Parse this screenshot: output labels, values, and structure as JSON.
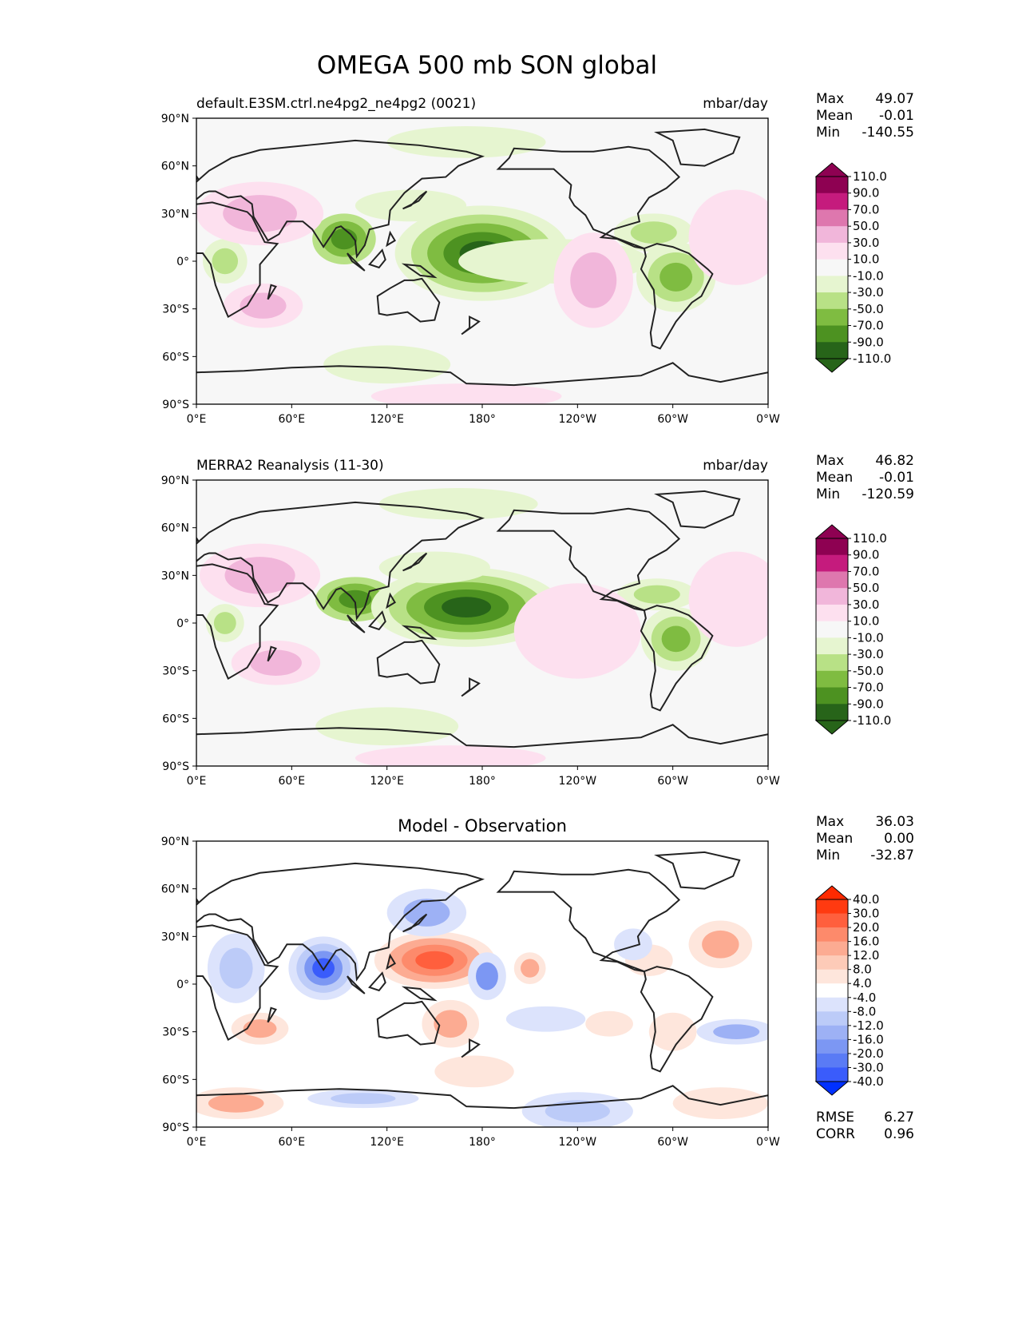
{
  "title": "OMEGA 500 mb SON global",
  "axes": {
    "lat_ticks": [
      "90°N",
      "60°N",
      "30°N",
      "0°",
      "30°S",
      "60°S",
      "90°S"
    ],
    "lon_ticks": [
      "0°E",
      "60°E",
      "120°E",
      "180°",
      "120°W",
      "60°W",
      "0°W"
    ]
  },
  "stat_labels": {
    "max": "Max",
    "mean": "Mean",
    "min": "Min",
    "rmse": "RMSE",
    "corr": "CORR"
  },
  "panels": [
    {
      "id": "model",
      "title_left": "default.E3SM.ctrl.ne4pg2_ne4pg2 (0021)",
      "title_center": "",
      "title_right": "mbar/day",
      "stats": {
        "max": "49.07",
        "mean": "-0.01",
        "min": "-140.55"
      },
      "colorbar": "omega"
    },
    {
      "id": "obs",
      "title_left": "MERRA2 Reanalysis (11-30)",
      "title_center": "",
      "title_right": "mbar/day",
      "stats": {
        "max": "46.82",
        "mean": "-0.01",
        "min": "-120.59"
      },
      "colorbar": "omega"
    },
    {
      "id": "diff",
      "title_left": "",
      "title_center": "Model - Observation",
      "title_right": "",
      "stats": {
        "max": "36.03",
        "mean": "0.00",
        "min": "-32.87",
        "rmse": "6.27",
        "corr": "0.96"
      },
      "colorbar": "diff"
    }
  ],
  "colorbars": {
    "omega": {
      "labels": [
        "110.0",
        "90.0",
        "70.0",
        "50.0",
        "30.0",
        "10.0",
        "-10.0",
        "-30.0",
        "-50.0",
        "-70.0",
        "-90.0",
        "-110.0"
      ],
      "colors": [
        "#8e0152",
        "#c51b7d",
        "#de77ae",
        "#f1b6da",
        "#fde0ef",
        "#f7f7f7",
        "#e6f5d0",
        "#b8e186",
        "#7fbc41",
        "#4d9221",
        "#276419"
      ],
      "over_color": "#8e0152",
      "under_color": "#276419"
    },
    "diff": {
      "labels": [
        "40.0",
        "30.0",
        "20.0",
        "16.0",
        "12.0",
        "8.0",
        "4.0",
        "-4.0",
        "-8.0",
        "-12.0",
        "-16.0",
        "-20.0",
        "-30.0",
        "-40.0"
      ],
      "colors": [
        "#ff3a10",
        "#ff5f3d",
        "#fd8a6b",
        "#fcab92",
        "#fdcbb8",
        "#fee6dc",
        "#ffffff",
        "#dce3fc",
        "#bccbf8",
        "#9db1f5",
        "#7c97f3",
        "#5a7bf5",
        "#3a5cfb"
      ],
      "over_color": "#ff2a00",
      "under_color": "#0030ff"
    }
  },
  "palette": {
    "ocean_background": "#f7f7f7",
    "diff_background": "#ffffff",
    "pink_light": "#fde0ef",
    "pink_mid": "#f1b6da",
    "green_light": "#e6f5d0",
    "green_mid": "#b8e186",
    "green_strong": "#7fbc41",
    "green_dark": "#4d9221",
    "green_darkest": "#276419",
    "blue_light": "#dce3fc",
    "blue_mid": "#9db1f5",
    "blue_strong": "#3a5cfb",
    "red_light": "#fee6dc",
    "red_mid": "#fcab92",
    "red_strong": "#ff5f3d"
  },
  "features": {
    "model": [
      {
        "lon": 93,
        "lat": 14,
        "rx": 20,
        "ry": 16,
        "levels": [
          "#b8e186",
          "#7fbc41",
          "#4d9221"
        ]
      },
      {
        "lon": 180,
        "lat": 5,
        "rx": 55,
        "ry": 30,
        "levels": [
          "#e6f5d0",
          "#b8e186",
          "#7fbc41",
          "#4d9221",
          "#276419"
        ]
      },
      {
        "lon": 225,
        "lat": 0,
        "rx": 60,
        "ry": 14,
        "levels": [
          "#e6f5d0"
        ]
      },
      {
        "lon": 135,
        "lat": 35,
        "rx": 35,
        "ry": 10,
        "levels": [
          "#e6f5d0"
        ]
      },
      {
        "lon": 170,
        "lat": 75,
        "rx": 50,
        "ry": 10,
        "levels": [
          "#e6f5d0"
        ]
      },
      {
        "lon": 288,
        "lat": 18,
        "rx": 25,
        "ry": 12,
        "levels": [
          "#e6f5d0",
          "#b8e186"
        ]
      },
      {
        "lon": 302,
        "lat": -10,
        "rx": 25,
        "ry": 22,
        "levels": [
          "#e6f5d0",
          "#b8e186",
          "#7fbc41"
        ]
      },
      {
        "lon": 18,
        "lat": 0,
        "rx": 14,
        "ry": 14,
        "levels": [
          "#e6f5d0",
          "#b8e186"
        ]
      },
      {
        "lon": 40,
        "lat": 30,
        "rx": 40,
        "ry": 20,
        "levels": [
          "#fde0ef",
          "#f1b6da"
        ]
      },
      {
        "lon": 42,
        "lat": -28,
        "rx": 25,
        "ry": 14,
        "levels": [
          "#fde0ef",
          "#f1b6da"
        ]
      },
      {
        "lon": 250,
        "lat": -12,
        "rx": 25,
        "ry": 30,
        "levels": [
          "#fde0ef",
          "#f1b6da"
        ]
      },
      {
        "lon": 340,
        "lat": 15,
        "rx": 30,
        "ry": 30,
        "levels": [
          "#fde0ef"
        ]
      },
      {
        "lon": 120,
        "lat": -65,
        "rx": 40,
        "ry": 12,
        "levels": [
          "#e6f5d0"
        ]
      },
      {
        "lon": 170,
        "lat": -85,
        "rx": 60,
        "ry": 8,
        "levels": [
          "#fde0ef"
        ]
      }
    ],
    "obs": [
      {
        "lon": 100,
        "lat": 15,
        "rx": 25,
        "ry": 14,
        "levels": [
          "#b8e186",
          "#7fbc41",
          "#4d9221"
        ]
      },
      {
        "lon": 170,
        "lat": 10,
        "rx": 60,
        "ry": 25,
        "levels": [
          "#e6f5d0",
          "#b8e186",
          "#7fbc41",
          "#4d9221",
          "#276419"
        ]
      },
      {
        "lon": 150,
        "lat": 35,
        "rx": 35,
        "ry": 10,
        "levels": [
          "#e6f5d0"
        ]
      },
      {
        "lon": 290,
        "lat": 18,
        "rx": 25,
        "ry": 10,
        "levels": [
          "#e6f5d0",
          "#b8e186"
        ]
      },
      {
        "lon": 302,
        "lat": -10,
        "rx": 22,
        "ry": 20,
        "levels": [
          "#e6f5d0",
          "#b8e186",
          "#7fbc41"
        ]
      },
      {
        "lon": 18,
        "lat": 0,
        "rx": 12,
        "ry": 12,
        "levels": [
          "#e6f5d0",
          "#b8e186"
        ]
      },
      {
        "lon": 40,
        "lat": 30,
        "rx": 38,
        "ry": 20,
        "levels": [
          "#fde0ef",
          "#f1b6da"
        ]
      },
      {
        "lon": 50,
        "lat": -25,
        "rx": 28,
        "ry": 14,
        "levels": [
          "#fde0ef",
          "#f1b6da"
        ]
      },
      {
        "lon": 240,
        "lat": -5,
        "rx": 40,
        "ry": 30,
        "levels": [
          "#fde0ef"
        ]
      },
      {
        "lon": 340,
        "lat": 15,
        "rx": 30,
        "ry": 30,
        "levels": [
          "#fde0ef"
        ]
      },
      {
        "lon": 120,
        "lat": -65,
        "rx": 45,
        "ry": 12,
        "levels": [
          "#e6f5d0"
        ]
      },
      {
        "lon": 165,
        "lat": 75,
        "rx": 50,
        "ry": 10,
        "levels": [
          "#e6f5d0"
        ]
      },
      {
        "lon": 160,
        "lat": -85,
        "rx": 60,
        "ry": 8,
        "levels": [
          "#fde0ef"
        ]
      }
    ],
    "diff": [
      {
        "lon": 80,
        "lat": 10,
        "rx": 22,
        "ry": 20,
        "levels": [
          "#dce3fc",
          "#bccbf8",
          "#7c97f3",
          "#3a5cfb"
        ]
      },
      {
        "lon": 150,
        "lat": 15,
        "rx": 38,
        "ry": 18,
        "levels": [
          "#fee6dc",
          "#fcab92",
          "#fd8a6b",
          "#ff5f3d"
        ]
      },
      {
        "lon": 145,
        "lat": 45,
        "rx": 25,
        "ry": 15,
        "levels": [
          "#dce3fc",
          "#9db1f5"
        ]
      },
      {
        "lon": 183,
        "lat": 5,
        "rx": 12,
        "ry": 15,
        "levels": [
          "#dce3fc",
          "#7c97f3"
        ]
      },
      {
        "lon": 210,
        "lat": 10,
        "rx": 10,
        "ry": 10,
        "levels": [
          "#fee6dc",
          "#fcab92"
        ]
      },
      {
        "lon": 25,
        "lat": 10,
        "rx": 18,
        "ry": 22,
        "levels": [
          "#dce3fc",
          "#bccbf8"
        ]
      },
      {
        "lon": 330,
        "lat": 25,
        "rx": 20,
        "ry": 15,
        "levels": [
          "#fee6dc",
          "#fcab92"
        ]
      },
      {
        "lon": 285,
        "lat": 15,
        "rx": 15,
        "ry": 10,
        "levels": [
          "#fee6dc"
        ]
      },
      {
        "lon": 275,
        "lat": 25,
        "rx": 12,
        "ry": 10,
        "levels": [
          "#dce3fc"
        ]
      },
      {
        "lon": 160,
        "lat": -25,
        "rx": 18,
        "ry": 15,
        "levels": [
          "#fee6dc",
          "#fcab92"
        ]
      },
      {
        "lon": 40,
        "lat": -28,
        "rx": 18,
        "ry": 10,
        "levels": [
          "#fee6dc",
          "#fcab92"
        ]
      },
      {
        "lon": 240,
        "lat": -80,
        "rx": 35,
        "ry": 12,
        "levels": [
          "#dce3fc",
          "#bccbf8"
        ]
      },
      {
        "lon": 340,
        "lat": -30,
        "rx": 25,
        "ry": 8,
        "levels": [
          "#dce3fc",
          "#9db1f5"
        ]
      },
      {
        "lon": 105,
        "lat": -72,
        "rx": 35,
        "ry": 6,
        "levels": [
          "#dce3fc",
          "#bccbf8"
        ]
      },
      {
        "lon": 25,
        "lat": -75,
        "rx": 30,
        "ry": 10,
        "levels": [
          "#fee6dc",
          "#fcab92"
        ]
      },
      {
        "lon": 330,
        "lat": -75,
        "rx": 30,
        "ry": 10,
        "levels": [
          "#fee6dc"
        ]
      },
      {
        "lon": 260,
        "lat": -25,
        "rx": 15,
        "ry": 8,
        "levels": [
          "#fee6dc"
        ]
      },
      {
        "lon": 175,
        "lat": -55,
        "rx": 25,
        "ry": 10,
        "levels": [
          "#fee6dc"
        ]
      },
      {
        "lon": 220,
        "lat": -22,
        "rx": 25,
        "ry": 8,
        "levels": [
          "#dce3fc"
        ]
      },
      {
        "lon": 300,
        "lat": -30,
        "rx": 15,
        "ry": 12,
        "levels": [
          "#fee6dc"
        ]
      }
    ]
  }
}
